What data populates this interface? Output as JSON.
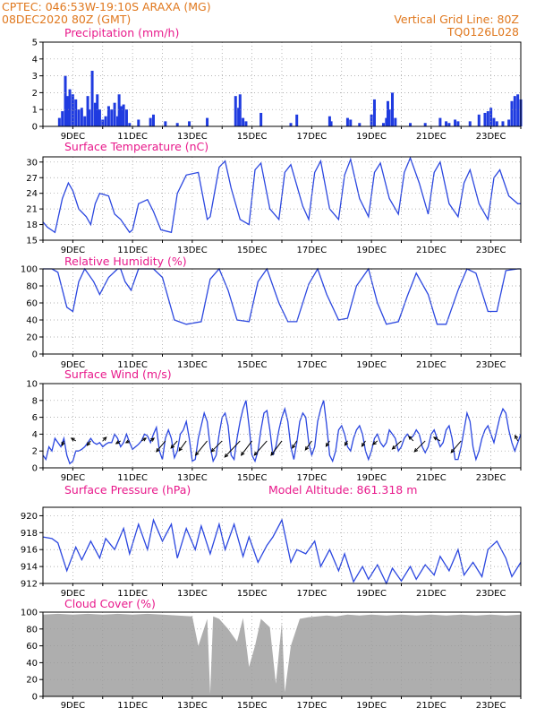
{
  "header": {
    "line1": "CPTEC:   046:53W-19:10S   ARAXA (MG)",
    "line2": "08DEC2020 80Z (GMT)",
    "right1": "Vertical Grid Line: 80Z",
    "right2": "TQ0126L028"
  },
  "colors": {
    "line": "#2b47e0",
    "bar": "#1f3be0",
    "cloud": "#aeaeae",
    "title": "#e8198b",
    "header": "#e0781e",
    "grid": "#9a9a9a"
  },
  "x_ticks": [
    "9DEC",
    "11DEC",
    "13DEC",
    "15DEC",
    "17DEC",
    "19DEC",
    "21DEC",
    "23DEC"
  ],
  "chart_data": [
    {
      "type": "bar",
      "title": "Precipitation (mm/h)",
      "ylim": [
        0,
        5
      ],
      "yticks": [
        "0",
        "1",
        "2",
        "3",
        "4",
        "5"
      ],
      "x": [
        0.55,
        0.65,
        0.75,
        0.82,
        0.9,
        1.0,
        1.1,
        1.2,
        1.3,
        1.4,
        1.5,
        1.55,
        1.65,
        1.75,
        1.82,
        1.9,
        2.0,
        2.1,
        2.2,
        2.3,
        2.4,
        2.5,
        2.55,
        2.62,
        2.7,
        2.8,
        2.9,
        3.2,
        3.6,
        3.7,
        4.1,
        4.5,
        4.9,
        5.5,
        6.45,
        6.55,
        6.6,
        6.7,
        6.8,
        7.3,
        8.3,
        8.5,
        9.6,
        9.65,
        10.2,
        10.3,
        10.6,
        11.0,
        11.1,
        11.4,
        11.5,
        11.55,
        11.6,
        11.7,
        11.8,
        12.3,
        12.8,
        13.3,
        13.5,
        13.6,
        13.8,
        13.9,
        14.3,
        14.6,
        14.8,
        14.9,
        15.0,
        15.1,
        15.2,
        15.4,
        15.6,
        15.7,
        15.8,
        15.9,
        16.0
      ],
      "values": [
        0.5,
        0.9,
        3.0,
        1.8,
        2.2,
        1.9,
        1.6,
        1.0,
        1.1,
        0.6,
        1.8,
        1.0,
        3.3,
        1.4,
        1.9,
        1.0,
        0.4,
        0.6,
        1.2,
        1.0,
        1.4,
        0.6,
        1.9,
        1.2,
        1.3,
        1.0,
        0.2,
        0.4,
        0.5,
        0.7,
        0.3,
        0.2,
        0.3,
        0.5,
        1.8,
        1.1,
        1.9,
        0.5,
        0.3,
        0.8,
        0.2,
        0.7,
        0.6,
        0.3,
        0.5,
        0.4,
        0.2,
        0.7,
        1.6,
        0.2,
        0.5,
        1.5,
        1.0,
        2.0,
        0.5,
        0.2,
        0.2,
        0.5,
        0.3,
        0.2,
        0.4,
        0.3,
        0.3,
        0.7,
        0.8,
        0.9,
        1.1,
        0.5,
        0.3,
        0.3,
        0.4,
        1.5,
        1.8,
        1.9,
        1.6
      ]
    },
    {
      "type": "line",
      "title": "Surface Temperature (nC)",
      "ylim": [
        15,
        31
      ],
      "yticks": [
        "15",
        "18",
        "21",
        "24",
        "27",
        "30"
      ],
      "x": [
        0,
        0.15,
        0.4,
        0.65,
        0.85,
        1.0,
        1.2,
        1.45,
        1.6,
        1.75,
        1.9,
        2.2,
        2.4,
        2.6,
        2.9,
        3.0,
        3.2,
        3.5,
        3.7,
        3.95,
        4.3,
        4.5,
        4.8,
        5.2,
        5.5,
        5.6,
        5.9,
        6.1,
        6.3,
        6.6,
        6.9,
        7.1,
        7.3,
        7.6,
        7.9,
        8.1,
        8.3,
        8.7,
        8.9,
        9.1,
        9.3,
        9.6,
        9.9,
        10.1,
        10.3,
        10.6,
        10.9,
        11.1,
        11.3,
        11.6,
        11.9,
        12.1,
        12.3,
        12.6,
        12.9,
        13.1,
        13.3,
        13.6,
        13.9,
        14.1,
        14.3,
        14.6,
        14.9,
        15.1,
        15.3,
        15.6,
        15.9,
        16.0
      ],
      "values": [
        18.5,
        17.5,
        16.5,
        23.0,
        26.0,
        24.5,
        21.0,
        19.5,
        18.0,
        22.0,
        24.0,
        23.5,
        20.0,
        19.0,
        16.5,
        17.0,
        22.0,
        22.8,
        20.5,
        17.0,
        16.5,
        24.0,
        27.5,
        28.0,
        19.0,
        19.5,
        29.0,
        30.2,
        25.0,
        19.0,
        18.0,
        28.5,
        29.8,
        21.0,
        19.0,
        28.0,
        29.5,
        21.5,
        19.0,
        28.0,
        30.2,
        21.0,
        19.0,
        27.5,
        30.5,
        23.0,
        19.5,
        28.0,
        29.8,
        23.0,
        20.0,
        28.0,
        30.8,
        26.0,
        20.0,
        28.0,
        30.0,
        22.0,
        19.5,
        26.0,
        28.5,
        22.0,
        19.0,
        27.0,
        28.5,
        23.5,
        22.0,
        22.0
      ]
    },
    {
      "type": "line",
      "title": "Relative Humidity (%)",
      "ylim": [
        0,
        100
      ],
      "yticks": [
        "0",
        "20",
        "40",
        "60",
        "80",
        "100"
      ],
      "x": [
        0,
        0.3,
        0.5,
        0.8,
        1.0,
        1.2,
        1.4,
        1.7,
        1.9,
        2.2,
        2.5,
        2.6,
        2.75,
        2.95,
        3.2,
        3.5,
        3.7,
        4.0,
        4.4,
        4.8,
        5.3,
        5.6,
        5.9,
        6.2,
        6.5,
        6.9,
        7.2,
        7.5,
        7.9,
        8.2,
        8.5,
        8.9,
        9.2,
        9.5,
        9.9,
        10.2,
        10.5,
        10.9,
        11.2,
        11.5,
        11.9,
        12.2,
        12.5,
        12.9,
        13.2,
        13.5,
        13.9,
        14.2,
        14.5,
        14.9,
        15.2,
        15.5,
        15.9,
        16.0
      ],
      "values": [
        100,
        100,
        96,
        55,
        50,
        85,
        100,
        85,
        70,
        90,
        100,
        100,
        85,
        75,
        100,
        100,
        100,
        90,
        40,
        35,
        38,
        88,
        100,
        75,
        40,
        38,
        85,
        100,
        60,
        38,
        38,
        82,
        100,
        70,
        40,
        42,
        80,
        100,
        60,
        35,
        38,
        68,
        95,
        70,
        35,
        35,
        75,
        100,
        95,
        50,
        50,
        98,
        100,
        100
      ]
    },
    {
      "type": "line",
      "title": "Surface Wind (m/s)",
      "ylim": [
        0,
        10
      ],
      "yticks": [
        "0",
        "2",
        "4",
        "6",
        "8",
        "10"
      ],
      "x": [
        0,
        0.1,
        0.2,
        0.3,
        0.4,
        0.5,
        0.6,
        0.7,
        0.8,
        0.9,
        1.0,
        1.1,
        1.2,
        1.3,
        1.4,
        1.5,
        1.6,
        1.7,
        1.8,
        1.9,
        2.0,
        2.1,
        2.2,
        2.3,
        2.4,
        2.5,
        2.6,
        2.7,
        2.8,
        2.9,
        3.0,
        3.1,
        3.2,
        3.3,
        3.4,
        3.5,
        3.6,
        3.7,
        3.8,
        3.9,
        4.0,
        4.1,
        4.2,
        4.3,
        4.4,
        4.5,
        4.6,
        4.7,
        4.8,
        4.9,
        5.0,
        5.1,
        5.2,
        5.3,
        5.4,
        5.5,
        5.6,
        5.7,
        5.8,
        5.9,
        6.0,
        6.1,
        6.2,
        6.3,
        6.4,
        6.5,
        6.6,
        6.7,
        6.8,
        6.9,
        7.0,
        7.1,
        7.2,
        7.3,
        7.4,
        7.5,
        7.6,
        7.7,
        7.8,
        7.9,
        8.0,
        8.1,
        8.2,
        8.3,
        8.4,
        8.5,
        8.6,
        8.7,
        8.8,
        8.9,
        9.0,
        9.1,
        9.2,
        9.3,
        9.4,
        9.5,
        9.6,
        9.7,
        9.8,
        9.9,
        10.0,
        10.1,
        10.2,
        10.3,
        10.4,
        10.5,
        10.6,
        10.7,
        10.8,
        10.9,
        11.0,
        11.1,
        11.2,
        11.3,
        11.4,
        11.5,
        11.6,
        11.7,
        11.8,
        11.9,
        12.0,
        12.1,
        12.2,
        12.3,
        12.4,
        12.5,
        12.6,
        12.7,
        12.8,
        12.9,
        13.0,
        13.1,
        13.2,
        13.3,
        13.4,
        13.5,
        13.6,
        13.7,
        13.8,
        13.9,
        14.0,
        14.1,
        14.2,
        14.3,
        14.4,
        14.5,
        14.6,
        14.7,
        14.8,
        14.9,
        15.0,
        15.1,
        15.2,
        15.3,
        15.4,
        15.5,
        15.6,
        15.7,
        15.8,
        15.9,
        16.0
      ],
      "values": [
        1.5,
        1.0,
        2.5,
        2.0,
        3.5,
        3.0,
        2.5,
        3.5,
        1.5,
        0.5,
        0.8,
        2.0,
        2.0,
        2.2,
        2.5,
        3.0,
        3.5,
        3.0,
        2.8,
        3.0,
        2.5,
        2.8,
        3.0,
        3.0,
        4.0,
        3.5,
        2.5,
        3.0,
        4.0,
        3.0,
        2.2,
        2.5,
        2.8,
        3.2,
        4.0,
        3.8,
        3.0,
        4.0,
        4.8,
        2.0,
        1.0,
        3.5,
        4.5,
        3.5,
        1.2,
        2.0,
        4.0,
        4.5,
        5.5,
        3.5,
        0.8,
        1.0,
        3.5,
        5.0,
        6.5,
        5.5,
        2.5,
        0.8,
        1.5,
        4.0,
        6.0,
        6.5,
        5.0,
        1.5,
        1.0,
        3.5,
        5.5,
        7.0,
        8.0,
        5.0,
        1.5,
        0.8,
        2.0,
        4.5,
        6.5,
        6.8,
        4.5,
        1.5,
        2.5,
        4.5,
        6.0,
        7.0,
        5.5,
        2.5,
        1.0,
        3.0,
        5.5,
        6.5,
        6.0,
        3.0,
        1.5,
        2.5,
        5.5,
        7.0,
        8.0,
        5.0,
        1.5,
        0.8,
        2.0,
        4.5,
        5.0,
        4.0,
        2.5,
        2.0,
        3.5,
        4.5,
        5.0,
        4.0,
        2.0,
        1.0,
        2.0,
        3.5,
        4.0,
        3.0,
        2.5,
        3.0,
        4.5,
        4.0,
        3.5,
        2.0,
        2.5,
        3.5,
        4.0,
        3.5,
        3.8,
        4.5,
        4.0,
        2.5,
        1.8,
        2.5,
        4.0,
        4.5,
        3.5,
        2.5,
        3.0,
        4.5,
        5.0,
        3.5,
        1.0,
        1.0,
        2.5,
        4.5,
        6.5,
        5.5,
        2.5,
        1.0,
        2.0,
        3.5,
        4.5,
        5.0,
        4.0,
        3.0,
        4.5,
        6.0,
        7.0,
        6.5,
        4.5,
        3.0,
        2.0,
        3.0,
        4.0
      ]
    },
    {
      "type": "line",
      "title": "Surface Pressure (hPa)",
      "ylim": [
        912,
        921
      ],
      "yticks": [
        "912",
        "914",
        "916",
        "918",
        "920"
      ],
      "x": [
        0,
        0.3,
        0.5,
        0.8,
        1.1,
        1.3,
        1.6,
        1.9,
        2.1,
        2.4,
        2.7,
        2.9,
        3.2,
        3.5,
        3.7,
        4.0,
        4.3,
        4.5,
        4.8,
        5.1,
        5.3,
        5.6,
        5.9,
        6.1,
        6.4,
        6.7,
        6.9,
        7.2,
        7.5,
        7.7,
        8.0,
        8.3,
        8.5,
        8.8,
        9.1,
        9.3,
        9.6,
        9.9,
        10.1,
        10.4,
        10.7,
        10.9,
        11.2,
        11.5,
        11.7,
        12.0,
        12.3,
        12.5,
        12.8,
        13.1,
        13.3,
        13.6,
        13.9,
        14.1,
        14.4,
        14.7,
        14.9,
        15.2,
        15.5,
        15.7,
        16.0
      ],
      "values": [
        917.5,
        917.3,
        916.8,
        913.5,
        916.3,
        914.8,
        917.0,
        915.0,
        917.3,
        916.0,
        918.5,
        915.5,
        919.0,
        916.0,
        919.5,
        917.0,
        919.0,
        915.0,
        918.5,
        916.0,
        918.8,
        915.5,
        919.0,
        916.0,
        919.0,
        915.2,
        917.5,
        914.5,
        916.5,
        917.5,
        919.5,
        914.5,
        916.0,
        915.5,
        917.0,
        914.0,
        916.0,
        913.5,
        915.5,
        912.2,
        914.0,
        912.5,
        914.2,
        912.0,
        913.8,
        912.3,
        914.0,
        912.5,
        914.2,
        913.0,
        915.2,
        913.5,
        916.0,
        913.0,
        914.5,
        912.8,
        916.0,
        917.0,
        915.0,
        912.8,
        914.5
      ]
    },
    {
      "type": "area",
      "title": "Cloud Cover (%)",
      "ylim": [
        0,
        100
      ],
      "yticks": [
        "0",
        "20",
        "40",
        "60",
        "80",
        "100"
      ],
      "x": [
        0,
        0.5,
        1.0,
        1.5,
        2.0,
        2.5,
        3.0,
        3.5,
        4.0,
        4.5,
        5.0,
        5.2,
        5.5,
        5.6,
        5.7,
        5.9,
        6.2,
        6.5,
        6.7,
        6.9,
        7.1,
        7.3,
        7.6,
        7.8,
        8.0,
        8.1,
        8.3,
        8.6,
        8.9,
        9.2,
        9.5,
        9.8,
        10.2,
        10.6,
        11.0,
        11.5,
        12.0,
        12.5,
        13.0,
        13.5,
        14.0,
        14.5,
        15.0,
        15.5,
        16.0
      ],
      "values": [
        97,
        98,
        97,
        98,
        97,
        98,
        97,
        98,
        97,
        96,
        95,
        60,
        92,
        3,
        95,
        92,
        80,
        65,
        93,
        35,
        60,
        92,
        82,
        15,
        88,
        5,
        60,
        92,
        94,
        95,
        96,
        95,
        97,
        96,
        97,
        96,
        97,
        96,
        97,
        96,
        97,
        96,
        97,
        96,
        97
      ]
    },
    {
      "type": "text",
      "title": "Model Altitude: 861.318 m"
    }
  ],
  "wind_vectors": [
    {
      "x": 0.7,
      "dx": -2,
      "dy": -5
    },
    {
      "x": 1.1,
      "dx": -5,
      "dy": 3
    },
    {
      "x": 1.6,
      "dx": -4,
      "dy": -5
    },
    {
      "x": 2.0,
      "dx": 4,
      "dy": 4
    },
    {
      "x": 2.6,
      "dx": -5,
      "dy": -3
    },
    {
      "x": 2.9,
      "dx": -4,
      "dy": -2
    },
    {
      "x": 3.3,
      "dx": 5,
      "dy": 3
    },
    {
      "x": 3.6,
      "dx": 4,
      "dy": 3
    },
    {
      "x": 4.1,
      "dx": -10,
      "dy": -12
    },
    {
      "x": 4.5,
      "dx": -7,
      "dy": -8
    },
    {
      "x": 4.8,
      "dx": -8,
      "dy": -11
    },
    {
      "x": 5.5,
      "dx": -13,
      "dy": -16
    },
    {
      "x": 6.0,
      "dx": -12,
      "dy": -12
    },
    {
      "x": 6.6,
      "dx": -17,
      "dy": -18
    },
    {
      "x": 7.0,
      "dx": -12,
      "dy": -16
    },
    {
      "x": 7.5,
      "dx": -14,
      "dy": -16
    },
    {
      "x": 8.0,
      "dx": -12,
      "dy": -16
    },
    {
      "x": 8.5,
      "dx": -5,
      "dy": -8
    },
    {
      "x": 9.0,
      "dx": -7,
      "dy": -10
    },
    {
      "x": 9.6,
      "dx": -4,
      "dy": -6
    },
    {
      "x": 10.2,
      "dx": -3,
      "dy": -5
    },
    {
      "x": 10.8,
      "dx": -4,
      "dy": -6
    },
    {
      "x": 11.2,
      "dx": -5,
      "dy": -4
    },
    {
      "x": 12.0,
      "dx": -10,
      "dy": -9
    },
    {
      "x": 12.4,
      "dx": -5,
      "dy": 5
    },
    {
      "x": 12.8,
      "dx": -12,
      "dy": -12
    },
    {
      "x": 13.3,
      "dx": -7,
      "dy": 4
    },
    {
      "x": 14.0,
      "dx": -11,
      "dy": -13
    },
    {
      "x": 15.9,
      "dx": -3,
      "dy": 6
    }
  ]
}
